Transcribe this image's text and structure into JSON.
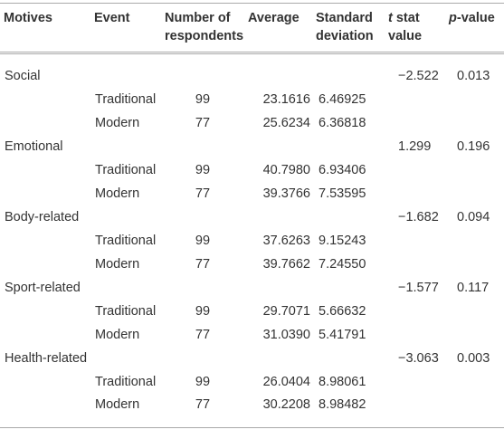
{
  "table": {
    "header": [
      "Motives",
      "Event",
      "Number of respondents",
      "Average",
      "Standard deviation",
      {
        "em": "t",
        "text": " stat value"
      },
      {
        "em": "p",
        "text": "-value"
      }
    ],
    "groups": [
      {
        "motive": "Social",
        "t": "−2.522",
        "p": "0.013",
        "rows": [
          [
            "Traditional",
            "99",
            "23.1616",
            "6.46925"
          ],
          [
            "Modern",
            "77",
            "25.6234",
            "6.36818"
          ]
        ]
      },
      {
        "motive": "Emotional",
        "t": "1.299",
        "p": "0.196",
        "rows": [
          [
            "Traditional",
            "99",
            "40.7980",
            "6.93406"
          ],
          [
            "Modern",
            "77",
            "39.3766",
            "7.53595"
          ]
        ]
      },
      {
        "motive": "Body-related",
        "t": "−1.682",
        "p": "0.094",
        "rows": [
          [
            "Traditional",
            "99",
            "37.6263",
            "9.15243"
          ],
          [
            "Modern",
            "77",
            "39.7662",
            "7.24550"
          ]
        ]
      },
      {
        "motive": "Sport-related",
        "t": "−1.577",
        "p": "0.117",
        "rows": [
          [
            "Traditional",
            "99",
            "29.7071",
            "5.66632"
          ],
          [
            "Modern",
            "77",
            "31.0390",
            "5.41791"
          ]
        ]
      },
      {
        "motive": "Health-related",
        "t": "−3.063",
        "p": "0.003",
        "rows": [
          [
            "Traditional",
            "99",
            "26.0404",
            "8.98061"
          ],
          [
            "Modern",
            "77",
            "30.2208",
            "8.98482"
          ]
        ]
      }
    ]
  }
}
